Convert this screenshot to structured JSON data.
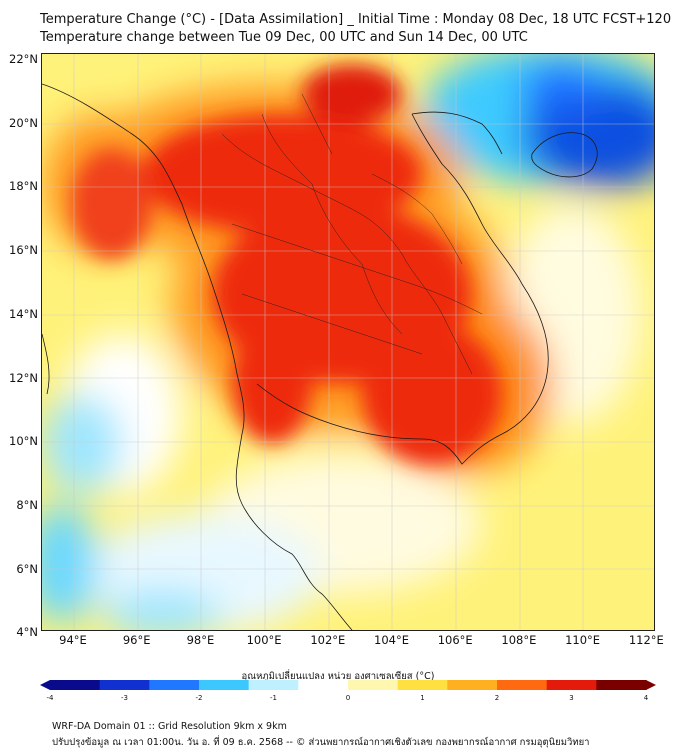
{
  "title_line1": "Temperature Change (°C) - [Data Assimilation] _ Initial Time : Monday 08 Dec, 18 UTC FCST+120",
  "title_line2": "Temperature change between Tue 09 Dec, 00 UTC and Sun 14 Dec, 00 UTC",
  "lat_labels": [
    "22°N",
    "20°N",
    "18°N",
    "16°N",
    "14°N",
    "12°N",
    "10°N",
    "8°N",
    "6°N",
    "4°N"
  ],
  "lon_labels": [
    "94°E",
    "96°E",
    "98°E",
    "100°E",
    "102°E",
    "104°E",
    "106°E",
    "108°E",
    "110°E",
    "112°E"
  ],
  "colorbar": {
    "title": "อุณหภูมิเปลี่ยนแปลง หน่วย องศาเซลเซียส (°C)",
    "ticks": [
      "-4",
      "-3",
      "-2",
      "-1",
      "0",
      "1",
      "2",
      "3",
      "4"
    ],
    "colors": [
      "#0a0a8c",
      "#1030d0",
      "#1f78ff",
      "#3cc8ff",
      "#bff0ff",
      "#ffffff",
      "#fff7b0",
      "#ffe040",
      "#ffb020",
      "#ff6a10",
      "#e41a0a",
      "#7a0000"
    ]
  },
  "footer_line1": "WRF-DA Domain 01 :: Grid Resolution 9km x 9km",
  "footer_line2": "ปรับปรุงข้อมูล ณ เวลา 01:00น. วัน อ. ที่ 09 ธ.ค. 2568 -- © ส่วนพยากรณ์อากาศเชิงตัวเลข กองพยากรณ์อากาศ กรมอุตุนิยมวิทยา"
}
